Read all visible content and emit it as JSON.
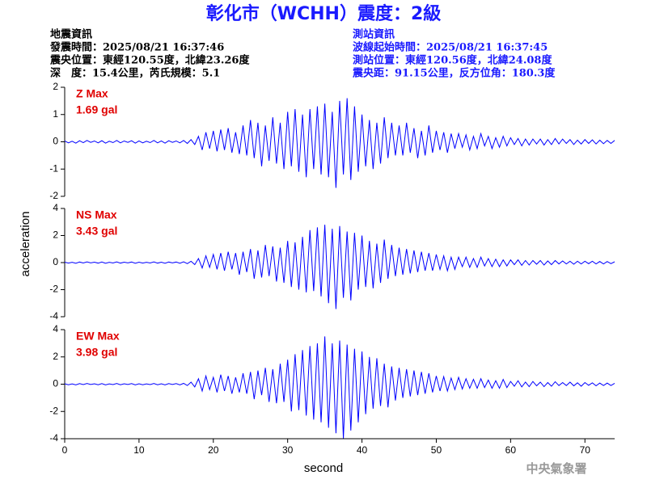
{
  "header": {
    "title": "彰化市（WCHH）震度：2級",
    "left": [
      "地震資訊",
      "發震時間：2025/08/21 16:37:46",
      "震央位置：東經120.55度，北緯23.26度",
      "深　度：15.4公里，芮氏規模：5.1"
    ],
    "right": [
      "測站資訊",
      "波線起始時間：2025/08/21 16:37:45",
      "測站位置：東經120.56度，北緯24.08度",
      "震央距：91.15公里，反方位角：180.3度"
    ]
  },
  "footer": "中央氣象署",
  "chart_data": {
    "type": "line",
    "xlabel": "second",
    "ylabel": "acceleration",
    "xlim": [
      0,
      74
    ],
    "xticks": [
      0,
      10,
      20,
      30,
      40,
      50,
      60,
      70
    ],
    "x": [
      0,
      0.5,
      1,
      1.5,
      2,
      2.5,
      3,
      3.5,
      4,
      4.5,
      5,
      5.5,
      6,
      6.5,
      7,
      7.5,
      8,
      8.5,
      9,
      9.5,
      10,
      10.5,
      11,
      11.5,
      12,
      12.5,
      13,
      13.5,
      14,
      14.5,
      15,
      15.5,
      16,
      16.5,
      17,
      17.5,
      18,
      18.5,
      19,
      19.5,
      20,
      20.5,
      21,
      21.5,
      22,
      22.5,
      23,
      23.5,
      24,
      24.5,
      25,
      25.5,
      26,
      26.5,
      27,
      27.5,
      28,
      28.5,
      29,
      29.5,
      30,
      30.5,
      31,
      31.5,
      32,
      32.5,
      33,
      33.5,
      34,
      34.5,
      35,
      35.5,
      36,
      36.5,
      37,
      37.5,
      38,
      38.5,
      39,
      39.5,
      40,
      40.5,
      41,
      41.5,
      42,
      42.5,
      43,
      43.5,
      44,
      44.5,
      45,
      45.5,
      46,
      46.5,
      47,
      47.5,
      48,
      48.5,
      49,
      49.5,
      50,
      50.5,
      51,
      51.5,
      52,
      52.5,
      53,
      53.5,
      54,
      54.5,
      55,
      55.5,
      56,
      56.5,
      57,
      57.5,
      58,
      58.5,
      59,
      59.5,
      60,
      60.5,
      61,
      61.5,
      62,
      62.5,
      63,
      63.5,
      64,
      64.5,
      65,
      65.5,
      66,
      66.5,
      67,
      67.5,
      68,
      68.5,
      69,
      69.5,
      70,
      70.5,
      71,
      71.5,
      72,
      72.5,
      73,
      73.5,
      74
    ],
    "series": [
      {
        "name": "Z Max",
        "max_label": "1.69 gal",
        "color": "#0000ff",
        "ylim": [
          -2,
          2
        ],
        "yticks": [
          -2,
          -1,
          0,
          1,
          2
        ],
        "values": [
          0.03,
          -0.04,
          0.02,
          -0.05,
          0.04,
          -0.03,
          0.05,
          -0.02,
          0.03,
          -0.04,
          0.04,
          -0.05,
          0.02,
          -0.03,
          0.05,
          -0.04,
          0.03,
          -0.02,
          0.04,
          -0.05,
          0.03,
          -0.04,
          0.02,
          -0.03,
          0.05,
          -0.04,
          0.03,
          -0.05,
          0.04,
          -0.02,
          0.03,
          -0.04,
          0.05,
          -0.06,
          0.08,
          -0.1,
          0.2,
          -0.3,
          0.35,
          -0.25,
          0.4,
          -0.35,
          0.45,
          -0.3,
          0.5,
          -0.4,
          0.35,
          -0.45,
          0.6,
          -0.5,
          0.8,
          -0.6,
          0.7,
          -0.9,
          0.6,
          -0.7,
          0.9,
          -0.8,
          0.7,
          -1.0,
          1.1,
          -0.9,
          1.2,
          -1.1,
          1.0,
          -1.3,
          1.2,
          -1.0,
          1.3,
          -1.2,
          1.4,
          -1.3,
          1.1,
          -1.69,
          1.5,
          -1.2,
          1.6,
          -1.4,
          1.3,
          -1.1,
          1.0,
          -0.9,
          0.8,
          -1.0,
          0.7,
          -0.8,
          0.9,
          -0.6,
          0.7,
          -0.5,
          0.6,
          -0.5,
          0.7,
          -0.4,
          0.5,
          -0.6,
          0.4,
          -0.5,
          0.6,
          -0.4,
          0.4,
          -0.3,
          0.35,
          -0.4,
          0.3,
          -0.25,
          0.3,
          -0.2,
          0.25,
          -0.3,
          0.2,
          -0.25,
          0.3,
          -0.15,
          0.2,
          -0.25,
          0.15,
          -0.2,
          0.2,
          -0.15,
          0.15,
          -0.1,
          0.12,
          -0.15,
          0.1,
          -0.12,
          0.1,
          -0.08,
          0.1,
          -0.12,
          0.08,
          -0.1,
          0.12,
          -0.08,
          0.1,
          -0.06,
          0.08,
          -0.1,
          0.06,
          -0.08,
          0.08,
          -0.06,
          0.07,
          -0.08,
          0.06,
          -0.07,
          0.05,
          -0.06,
          0.05
        ]
      },
      {
        "name": "NS Max",
        "max_label": "3.43 gal",
        "color": "#0000ff",
        "ylim": [
          -4,
          4
        ],
        "yticks": [
          -4,
          -2,
          0,
          2,
          4
        ],
        "values": [
          0.03,
          -0.04,
          0.02,
          -0.05,
          0.04,
          -0.03,
          0.05,
          -0.02,
          0.03,
          -0.04,
          0.04,
          -0.05,
          0.02,
          -0.03,
          0.05,
          -0.04,
          0.03,
          -0.02,
          0.04,
          -0.05,
          0.03,
          -0.04,
          0.02,
          -0.03,
          0.05,
          -0.04,
          0.03,
          -0.05,
          0.04,
          -0.02,
          0.04,
          -0.05,
          0.06,
          -0.08,
          0.1,
          -0.15,
          0.3,
          -0.4,
          0.5,
          -0.35,
          0.6,
          -0.5,
          0.7,
          -0.6,
          0.8,
          -0.5,
          0.7,
          -0.9,
          0.8,
          -0.7,
          1.0,
          -1.2,
          0.9,
          -1.1,
          1.3,
          -1.0,
          1.2,
          -1.4,
          1.1,
          -1.5,
          1.6,
          -1.8,
          1.5,
          -2.0,
          1.9,
          -2.2,
          2.4,
          -2.1,
          2.6,
          -2.5,
          2.8,
          -3.0,
          2.5,
          -3.43,
          2.7,
          -2.6,
          2.3,
          -2.8,
          2.2,
          -2.0,
          2.0,
          -1.8,
          1.6,
          -1.9,
          1.4,
          -1.5,
          1.7,
          -1.2,
          1.3,
          -1.0,
          1.1,
          -0.9,
          1.0,
          -0.8,
          0.9,
          -0.7,
          0.8,
          -0.6,
          0.7,
          -0.6,
          0.6,
          -0.5,
          0.5,
          -0.6,
          0.4,
          -0.5,
          0.4,
          -0.3,
          0.4,
          -0.35,
          0.3,
          -0.35,
          0.4,
          -0.25,
          0.3,
          -0.3,
          0.25,
          -0.3,
          0.2,
          -0.25,
          0.2,
          -0.15,
          0.2,
          -0.2,
          0.15,
          -0.18,
          0.15,
          -0.12,
          0.15,
          -0.18,
          0.12,
          -0.15,
          0.15,
          -0.1,
          0.12,
          -0.1,
          0.1,
          -0.12,
          0.1,
          -0.1,
          0.1,
          -0.08,
          0.1,
          -0.1,
          0.08,
          -0.1,
          0.08,
          -0.08,
          0.06
        ]
      },
      {
        "name": "EW Max",
        "max_label": "3.98 gal",
        "color": "#0000ff",
        "ylim": [
          -4,
          4
        ],
        "yticks": [
          -4,
          -2,
          0,
          2,
          4
        ],
        "values": [
          0.03,
          -0.04,
          0.02,
          -0.05,
          0.04,
          -0.03,
          0.05,
          -0.02,
          0.03,
          -0.04,
          0.04,
          -0.05,
          0.02,
          -0.03,
          0.05,
          -0.04,
          0.03,
          -0.02,
          0.04,
          -0.05,
          0.03,
          -0.04,
          0.02,
          -0.03,
          0.05,
          -0.04,
          0.03,
          -0.05,
          0.04,
          -0.02,
          0.04,
          -0.05,
          0.06,
          -0.1,
          0.15,
          -0.2,
          0.4,
          -0.5,
          0.6,
          -0.4,
          0.5,
          -0.6,
          0.7,
          -0.5,
          0.6,
          -0.7,
          0.5,
          -0.6,
          0.8,
          -0.7,
          0.9,
          -1.1,
          1.0,
          -0.8,
          1.2,
          -1.3,
          1.1,
          -1.4,
          1.5,
          -1.3,
          1.8,
          -2.0,
          2.2,
          -1.9,
          2.5,
          -2.3,
          2.8,
          -2.6,
          3.0,
          -2.8,
          3.5,
          -3.2,
          3.0,
          -3.6,
          3.2,
          -3.98,
          2.9,
          -3.4,
          2.6,
          -2.8,
          2.4,
          -2.2,
          2.0,
          -1.8,
          1.9,
          -1.6,
          1.5,
          -1.7,
          1.3,
          -1.2,
          1.2,
          -1.0,
          1.1,
          -0.9,
          1.0,
          -0.8,
          0.9,
          -0.7,
          0.8,
          -0.6,
          0.6,
          -0.5,
          0.55,
          -0.5,
          0.45,
          -0.4,
          0.5,
          -0.35,
          0.4,
          -0.3,
          0.35,
          -0.3,
          0.4,
          -0.25,
          0.3,
          -0.3,
          0.25,
          -0.3,
          0.35,
          -0.25,
          0.2,
          -0.15,
          0.25,
          -0.2,
          0.15,
          -0.18,
          0.2,
          -0.12,
          0.15,
          -0.18,
          0.12,
          -0.15,
          0.18,
          -0.1,
          0.12,
          -0.1,
          0.15,
          -0.12,
          0.1,
          -0.15,
          0.12,
          -0.08,
          0.1,
          -0.12,
          0.08,
          -0.1,
          0.08,
          -0.1,
          0.06
        ]
      }
    ]
  }
}
